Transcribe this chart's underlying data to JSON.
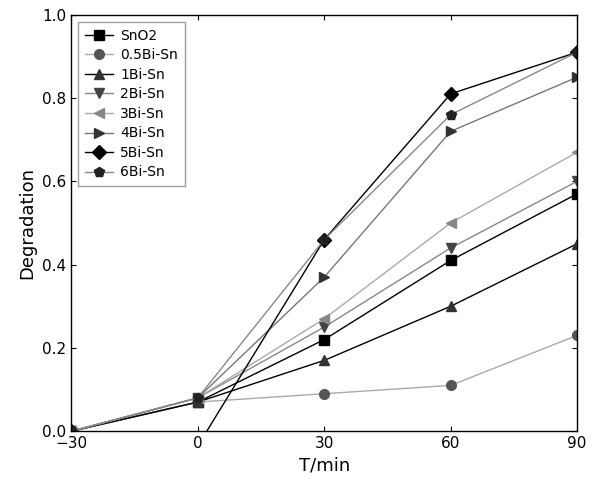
{
  "title": "",
  "xlabel": "T/min",
  "ylabel": "Degradation",
  "xlim": [
    -30,
    90
  ],
  "ylim": [
    0.0,
    1.0
  ],
  "xticks": [
    -30,
    0,
    30,
    60,
    90
  ],
  "yticks": [
    0.0,
    0.2,
    0.4,
    0.6,
    0.8,
    1.0
  ],
  "series": [
    {
      "label": "SnO2",
      "x": [
        -30,
        0,
        30,
        60,
        90
      ],
      "y": [
        0.0,
        0.07,
        0.22,
        0.41,
        0.57
      ],
      "linecolor": "#000000",
      "markercolor": "#000000",
      "marker": "s",
      "markersize": 7
    },
    {
      "label": "0.5Bi-Sn",
      "x": [
        -30,
        0,
        30,
        60,
        90
      ],
      "y": [
        0.0,
        0.07,
        0.09,
        0.11,
        0.23
      ],
      "linecolor": "#aaaaaa",
      "markercolor": "#555555",
      "marker": "o",
      "markersize": 7
    },
    {
      "label": "1Bi-Sn",
      "x": [
        -30,
        0,
        30,
        60,
        90
      ],
      "y": [
        0.0,
        0.07,
        0.17,
        0.3,
        0.45
      ],
      "linecolor": "#000000",
      "markercolor": "#333333",
      "marker": "^",
      "markersize": 7
    },
    {
      "label": "2Bi-Sn",
      "x": [
        -30,
        0,
        30,
        60,
        90
      ],
      "y": [
        0.0,
        0.08,
        0.25,
        0.44,
        0.6
      ],
      "linecolor": "#888888",
      "markercolor": "#444444",
      "marker": "v",
      "markersize": 7
    },
    {
      "label": "3Bi-Sn",
      "x": [
        -30,
        0,
        30,
        60,
        90
      ],
      "y": [
        0.0,
        0.08,
        0.27,
        0.5,
        0.67
      ],
      "linecolor": "#aaaaaa",
      "markercolor": "#888888",
      "marker": "<",
      "markersize": 7
    },
    {
      "label": "4Bi-Sn",
      "x": [
        -30,
        0,
        30,
        60,
        90
      ],
      "y": [
        0.0,
        0.08,
        0.37,
        0.72,
        0.85
      ],
      "linecolor": "#777777",
      "markercolor": "#333333",
      "marker": ">",
      "markersize": 7
    },
    {
      "label": "5Bi-Sn",
      "x": [
        -30,
        0,
        30,
        60,
        90
      ],
      "y": [
        0.0,
        -0.035,
        0.46,
        0.81,
        0.91
      ],
      "linecolor": "#000000",
      "markercolor": "#000000",
      "marker": "D",
      "markersize": 7
    },
    {
      "label": "6Bi-Sn",
      "x": [
        -30,
        0,
        30,
        60,
        90
      ],
      "y": [
        0.0,
        0.08,
        0.46,
        0.76,
        0.91
      ],
      "linecolor": "#888888",
      "markercolor": "#222222",
      "marker": "p",
      "markersize": 7
    }
  ],
  "legend_loc": "upper left",
  "legend_fontsize": 10,
  "figsize": [
    5.95,
    4.9
  ],
  "dpi": 100,
  "xlabel_fontsize": 13,
  "ylabel_fontsize": 13,
  "tick_labelsize": 11
}
